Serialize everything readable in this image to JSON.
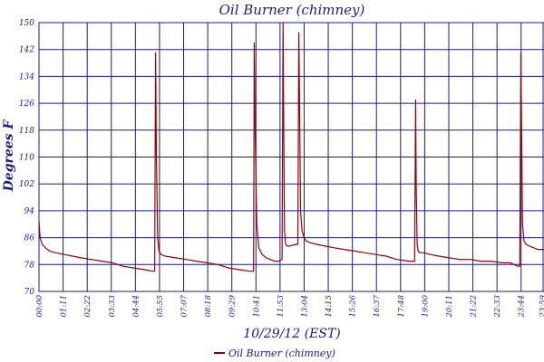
{
  "chart_data": {
    "type": "line",
    "title": "Oil Burner (chimney)",
    "xlabel": "10/29/12 (EST)",
    "ylabel": "Degrees F",
    "ylim": [
      70,
      150
    ],
    "yticks": [
      70,
      78,
      86,
      94,
      102,
      110,
      118,
      126,
      134,
      142,
      150
    ],
    "xlim": [
      0,
      24
    ],
    "xtick_labels": [
      "00:00",
      "01:11",
      "02:22",
      "03:33",
      "04:44",
      "05:55",
      "07:07",
      "08:18",
      "09:29",
      "10:41",
      "11:53",
      "13:04",
      "14:15",
      "15:26",
      "16:37",
      "17:48",
      "19:00",
      "20:11",
      "21:22",
      "22:33",
      "23:44",
      "23:59"
    ],
    "grid": true,
    "legend_position": "bottom",
    "colors": {
      "series": "#990000",
      "grid": "#1a1a8c",
      "text": "#1a1a8c"
    },
    "series": [
      {
        "name": "Oil Burner (chimney)",
        "x": [
          0,
          0.05,
          0.15,
          0.3,
          0.5,
          0.8,
          1.2,
          1.6,
          2.0,
          2.5,
          3.0,
          3.5,
          4.0,
          4.5,
          5.0,
          5.4,
          5.5,
          5.54,
          5.58,
          5.64,
          5.7,
          5.8,
          6.0,
          6.5,
          7.0,
          7.5,
          8.0,
          8.5,
          9.0,
          9.5,
          10.0,
          10.15,
          10.2,
          10.23,
          10.28,
          10.35,
          10.45,
          10.6,
          10.8,
          11.0,
          11.2,
          11.4,
          11.55,
          11.6,
          11.63,
          11.67,
          11.72,
          11.8,
          11.9,
          12.2,
          12.3,
          12.35,
          12.39,
          12.43,
          12.5,
          12.6,
          12.7,
          12.9,
          13.2,
          13.6,
          14.0,
          14.5,
          15.0,
          15.5,
          16.0,
          16.5,
          17.0,
          17.6,
          17.85,
          17.9,
          17.93,
          17.97,
          18.02,
          18.1,
          18.3,
          18.6,
          19.0,
          19.5,
          20.0,
          20.5,
          21.0,
          21.5,
          22.0,
          22.4,
          22.75,
          22.85,
          22.9,
          22.94,
          22.98,
          23.05,
          23.15,
          23.3,
          23.5,
          23.7,
          24.0
        ],
        "y": [
          91,
          86,
          84,
          83,
          82,
          81.5,
          81,
          80.5,
          80,
          79.5,
          79,
          78.5,
          77.5,
          77,
          76.5,
          76,
          76,
          141,
          110,
          86,
          82,
          81,
          80.5,
          80,
          79.5,
          79,
          78.5,
          78,
          77,
          76.5,
          76,
          76,
          76,
          144,
          115,
          90,
          83,
          81,
          80,
          79.5,
          79,
          79,
          79.5,
          151,
          120,
          88,
          84,
          83.5,
          83.5,
          84,
          84,
          147,
          120,
          94,
          88,
          86,
          85,
          84.5,
          84,
          83.5,
          83,
          82.5,
          82,
          81.5,
          81,
          80.5,
          79.5,
          79,
          79,
          127,
          100,
          84,
          82,
          81.5,
          81.5,
          81,
          80.5,
          80,
          79.5,
          79.5,
          79,
          79,
          78.5,
          78.5,
          77.5,
          77.5,
          141,
          115,
          90,
          85,
          84,
          83.5,
          83,
          82.5,
          82.5
        ]
      }
    ]
  }
}
